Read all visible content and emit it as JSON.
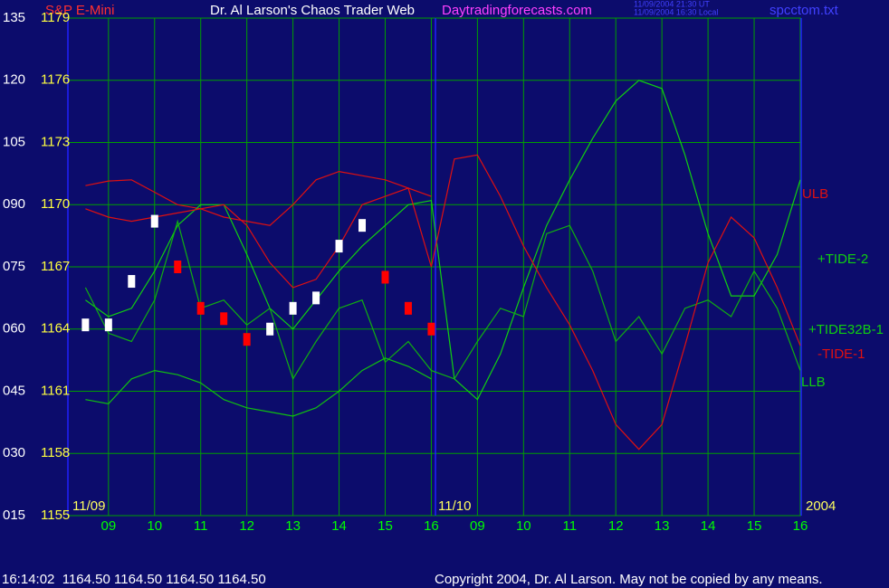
{
  "chart_data": {
    "type": "line",
    "instrument": "S&P E-Mini",
    "title": "Dr. Al Larson's Chaos Trader Web",
    "site": "Daytradingforecasts.com",
    "timestamps": [
      "11/09/2004 21:30 UT",
      "11/09/2004 16:30 Local"
    ],
    "file": "spcctom.txt",
    "date_labels": [
      "11/09",
      "11/10",
      "2004"
    ],
    "status": "16:14:02  1164.50 1164.50 1164.50 1164.50",
    "copyright": "Copyright 2004, Dr. Al Larson. May not be copied by any means.",
    "background": "#0c0c6c",
    "grid": true,
    "grid_color": "#00a000",
    "divider_color": "#2020ff",
    "xlim": [
      0.12,
      16.02
    ],
    "xticks": [
      {
        "value": 1,
        "label": "09"
      },
      {
        "value": 2,
        "label": "10"
      },
      {
        "value": 3,
        "label": "11"
      },
      {
        "value": 4,
        "label": "12"
      },
      {
        "value": 5,
        "label": "13"
      },
      {
        "value": 6,
        "label": "14"
      },
      {
        "value": 7,
        "label": "15"
      },
      {
        "value": 8,
        "label": "16"
      },
      {
        "value": 9,
        "label": "09"
      },
      {
        "value": 10,
        "label": "10"
      },
      {
        "value": 11,
        "label": "11"
      },
      {
        "value": 12,
        "label": "12"
      },
      {
        "value": 13,
        "label": "13"
      },
      {
        "value": 14,
        "label": "14"
      },
      {
        "value": 15,
        "label": "15"
      },
      {
        "value": 16,
        "label": "16"
      }
    ],
    "dividers": [
      0.12,
      8.09,
      16.02
    ],
    "ylim": [
      15,
      135
    ],
    "yticks": [
      135,
      120,
      105,
      {
        "value": 90,
        "label": "090"
      },
      {
        "value": 75,
        "label": "075"
      },
      {
        "value": 60,
        "label": "060"
      },
      {
        "value": 45,
        "label": "045"
      },
      {
        "value": 30,
        "label": "030"
      },
      {
        "value": 15,
        "label": "015"
      }
    ],
    "y2lim": [
      1155,
      1179
    ],
    "y2ticks": [
      1179,
      1176,
      1173,
      1170,
      1167,
      1164,
      1161,
      1158,
      1155
    ],
    "x": [
      0.5,
      1,
      1.5,
      2,
      2.5,
      3,
      3.5,
      4,
      4.5,
      5,
      5.5,
      6,
      6.5,
      7,
      7.5,
      8,
      8.5,
      9,
      9.5,
      10,
      10.5,
      11,
      11.5,
      12,
      12.5,
      13,
      13.5,
      14,
      14.5,
      15,
      15.5,
      16
    ],
    "series": [
      {
        "name": "ULB",
        "color": "#e01010",
        "values": [
          94.6,
          95.7,
          96,
          93,
          90,
          89,
          87,
          86,
          85,
          90,
          96,
          98,
          97,
          96,
          94,
          92,
          null,
          null,
          null,
          null,
          null,
          null,
          null,
          null,
          null,
          null,
          null,
          null,
          null,
          null,
          null,
          null
        ]
      },
      {
        "name": "+TIDE-2",
        "color": "#10d010",
        "values": [
          67,
          63,
          65,
          74,
          85,
          90,
          90,
          78,
          65,
          60,
          67,
          74,
          80,
          85,
          90,
          91,
          48,
          43,
          54,
          70,
          85,
          96,
          106,
          115,
          120,
          118,
          102,
          83,
          68,
          68,
          78,
          96
        ]
      },
      {
        "name": "+TIDE32B-1",
        "color": "#10b010",
        "values": [
          70,
          59,
          57,
          67,
          86,
          65,
          67,
          61,
          65,
          48,
          57,
          65,
          67,
          52,
          57,
          50,
          48,
          57,
          65,
          63,
          83,
          85,
          74,
          57,
          63,
          54,
          65,
          67,
          63,
          74,
          65,
          50
        ]
      },
      {
        "name": "-TIDE-1",
        "color": "#e01010",
        "values": [
          89,
          87,
          86,
          87,
          88,
          89,
          90,
          85,
          76,
          70,
          72,
          80,
          90,
          92,
          94,
          75,
          101,
          102,
          92,
          80,
          70,
          61,
          50,
          37,
          31,
          37,
          56,
          76,
          87,
          82,
          70,
          56
        ]
      },
      {
        "name": "LLB",
        "color": "#10c010",
        "values": [
          43,
          42,
          48,
          50,
          49,
          47,
          43,
          41,
          40,
          39,
          41,
          45,
          50,
          53,
          51,
          48,
          null,
          null,
          null,
          null,
          null,
          null,
          null,
          null,
          null,
          null,
          null,
          null,
          null,
          null,
          null,
          null
        ]
      }
    ],
    "price": {
      "axis": "y2",
      "up_color": "#ffffff",
      "down_color": "#ff0000",
      "values": [
        1164.2,
        1164.2,
        1166.3,
        1169.2,
        1167,
        1165,
        1164.5,
        1163.5,
        1164,
        1165,
        1165.5,
        1168,
        1169,
        1166.5,
        1165,
        1164,
        null,
        null,
        null,
        null,
        null,
        null,
        null,
        null,
        null,
        null,
        null,
        null,
        null,
        null,
        null,
        null
      ]
    }
  }
}
